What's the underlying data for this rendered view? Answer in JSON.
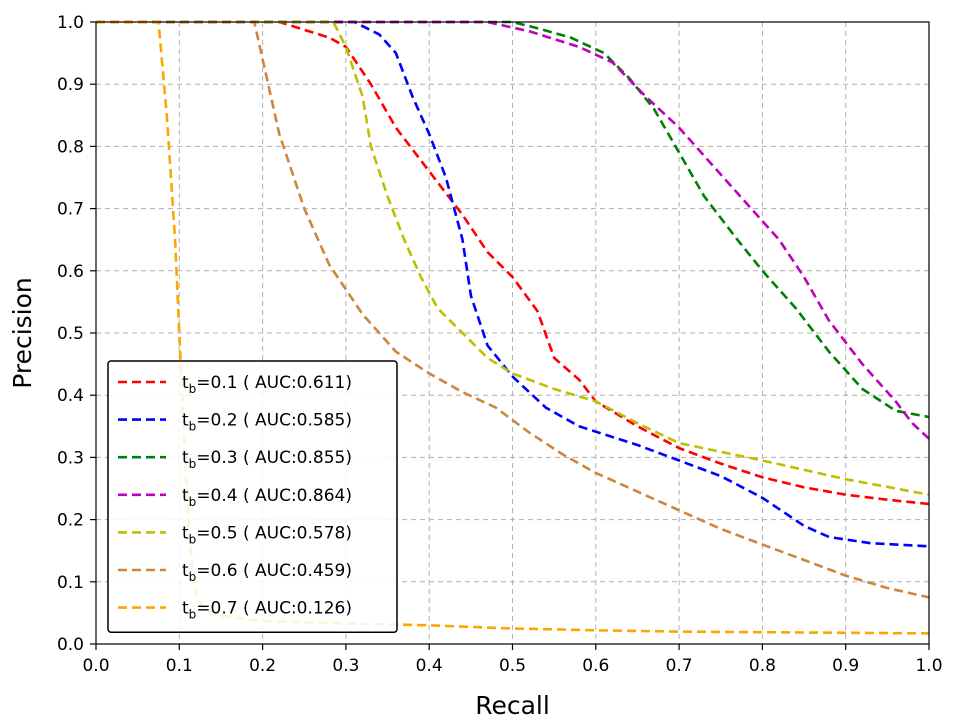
{
  "chart_data": {
    "type": "line",
    "title": "",
    "xlabel": "Recall",
    "ylabel": "Precision",
    "xlim": [
      0.0,
      1.0
    ],
    "ylim": [
      0.0,
      1.0
    ],
    "x_ticks": [
      "0.0",
      "0.1",
      "0.2",
      "0.3",
      "0.4",
      "0.5",
      "0.6",
      "0.7",
      "0.8",
      "0.9",
      "1.0"
    ],
    "y_ticks": [
      "0.0",
      "0.1",
      "0.2",
      "0.3",
      "0.4",
      "0.5",
      "0.6",
      "0.7",
      "0.8",
      "0.9",
      "1.0"
    ],
    "grid": true,
    "legend_position": "lower-left",
    "line_style": "dashed",
    "series": [
      {
        "name": "t_b=0.1 ( AUC:0.611)",
        "sym": "t",
        "sub": "b",
        "label_rest": "=0.1 ( AUC:0.611)",
        "color": "#ff0000",
        "points": [
          [
            0.0,
            1.0
          ],
          [
            0.22,
            1.0
          ],
          [
            0.28,
            0.975
          ],
          [
            0.3,
            0.96
          ],
          [
            0.33,
            0.9
          ],
          [
            0.36,
            0.83
          ],
          [
            0.4,
            0.76
          ],
          [
            0.44,
            0.69
          ],
          [
            0.47,
            0.63
          ],
          [
            0.5,
            0.59
          ],
          [
            0.53,
            0.535
          ],
          [
            0.55,
            0.46
          ],
          [
            0.58,
            0.425
          ],
          [
            0.6,
            0.39
          ],
          [
            0.65,
            0.35
          ],
          [
            0.7,
            0.315
          ],
          [
            0.75,
            0.29
          ],
          [
            0.8,
            0.268
          ],
          [
            0.85,
            0.252
          ],
          [
            0.9,
            0.24
          ],
          [
            0.95,
            0.232
          ],
          [
            1.0,
            0.225
          ]
        ]
      },
      {
        "name": "t_b=0.2 ( AUC:0.585)",
        "sym": "t",
        "sub": "b",
        "label_rest": "=0.2 ( AUC:0.585)",
        "color": "#0000ff",
        "points": [
          [
            0.0,
            1.0
          ],
          [
            0.31,
            1.0
          ],
          [
            0.34,
            0.98
          ],
          [
            0.36,
            0.95
          ],
          [
            0.38,
            0.88
          ],
          [
            0.4,
            0.82
          ],
          [
            0.42,
            0.75
          ],
          [
            0.44,
            0.65
          ],
          [
            0.45,
            0.56
          ],
          [
            0.47,
            0.48
          ],
          [
            0.5,
            0.43
          ],
          [
            0.54,
            0.38
          ],
          [
            0.58,
            0.35
          ],
          [
            0.65,
            0.32
          ],
          [
            0.7,
            0.295
          ],
          [
            0.75,
            0.27
          ],
          [
            0.8,
            0.235
          ],
          [
            0.85,
            0.19
          ],
          [
            0.88,
            0.172
          ],
          [
            0.93,
            0.162
          ],
          [
            1.0,
            0.157
          ]
        ]
      },
      {
        "name": "t_b=0.3 ( AUC:0.855)",
        "sym": "t",
        "sub": "b",
        "label_rest": "=0.3 ( AUC:0.855)",
        "color": "#008000",
        "points": [
          [
            0.0,
            1.0
          ],
          [
            0.5,
            1.0
          ],
          [
            0.53,
            0.99
          ],
          [
            0.57,
            0.975
          ],
          [
            0.61,
            0.95
          ],
          [
            0.64,
            0.91
          ],
          [
            0.67,
            0.86
          ],
          [
            0.7,
            0.79
          ],
          [
            0.73,
            0.72
          ],
          [
            0.77,
            0.65
          ],
          [
            0.8,
            0.6
          ],
          [
            0.84,
            0.54
          ],
          [
            0.88,
            0.47
          ],
          [
            0.92,
            0.41
          ],
          [
            0.96,
            0.375
          ],
          [
            1.0,
            0.365
          ]
        ]
      },
      {
        "name": "t_b=0.4 ( AUC:0.864)",
        "sym": "t",
        "sub": "b",
        "label_rest": "=0.4 ( AUC:0.864)",
        "color": "#bf00bf",
        "points": [
          [
            0.0,
            1.0
          ],
          [
            0.47,
            1.0
          ],
          [
            0.52,
            0.985
          ],
          [
            0.58,
            0.96
          ],
          [
            0.62,
            0.935
          ],
          [
            0.66,
            0.88
          ],
          [
            0.7,
            0.83
          ],
          [
            0.74,
            0.77
          ],
          [
            0.78,
            0.71
          ],
          [
            0.82,
            0.65
          ],
          [
            0.85,
            0.59
          ],
          [
            0.88,
            0.52
          ],
          [
            0.92,
            0.45
          ],
          [
            0.96,
            0.39
          ],
          [
            0.98,
            0.355
          ],
          [
            1.0,
            0.33
          ]
        ]
      },
      {
        "name": "t_b=0.5 ( AUC:0.578)",
        "sym": "t",
        "sub": "b",
        "label_rest": "=0.5 ( AUC:0.578)",
        "color": "#bfbf00",
        "points": [
          [
            0.0,
            1.0
          ],
          [
            0.285,
            1.0
          ],
          [
            0.3,
            0.96
          ],
          [
            0.32,
            0.88
          ],
          [
            0.33,
            0.8
          ],
          [
            0.35,
            0.72
          ],
          [
            0.37,
            0.65
          ],
          [
            0.39,
            0.59
          ],
          [
            0.41,
            0.54
          ],
          [
            0.44,
            0.5
          ],
          [
            0.47,
            0.46
          ],
          [
            0.5,
            0.435
          ],
          [
            0.55,
            0.41
          ],
          [
            0.6,
            0.39
          ],
          [
            0.65,
            0.355
          ],
          [
            0.7,
            0.323
          ],
          [
            0.8,
            0.295
          ],
          [
            0.9,
            0.265
          ],
          [
            1.0,
            0.24
          ]
        ]
      },
      {
        "name": "t_b=0.6 ( AUC:0.459)",
        "sym": "t",
        "sub": "b",
        "label_rest": "=0.6 ( AUC:0.459)",
        "color": "#cd853f",
        "points": [
          [
            0.0,
            1.0
          ],
          [
            0.19,
            1.0
          ],
          [
            0.2,
            0.94
          ],
          [
            0.22,
            0.82
          ],
          [
            0.25,
            0.7
          ],
          [
            0.28,
            0.61
          ],
          [
            0.32,
            0.53
          ],
          [
            0.36,
            0.47
          ],
          [
            0.4,
            0.435
          ],
          [
            0.44,
            0.405
          ],
          [
            0.48,
            0.38
          ],
          [
            0.52,
            0.34
          ],
          [
            0.56,
            0.305
          ],
          [
            0.6,
            0.275
          ],
          [
            0.65,
            0.245
          ],
          [
            0.7,
            0.215
          ],
          [
            0.75,
            0.185
          ],
          [
            0.8,
            0.16
          ],
          [
            0.85,
            0.135
          ],
          [
            0.9,
            0.11
          ],
          [
            0.95,
            0.09
          ],
          [
            1.0,
            0.075
          ]
        ]
      },
      {
        "name": "t_b=0.7 ( AUC:0.126)",
        "sym": "t",
        "sub": "b",
        "label_rest": "=0.7 ( AUC:0.126)",
        "color": "#ffa500",
        "points": [
          [
            0.0,
            1.0
          ],
          [
            0.075,
            1.0
          ],
          [
            0.085,
            0.85
          ],
          [
            0.095,
            0.65
          ],
          [
            0.1,
            0.5
          ],
          [
            0.105,
            0.35
          ],
          [
            0.11,
            0.22
          ],
          [
            0.115,
            0.13
          ],
          [
            0.12,
            0.08
          ],
          [
            0.13,
            0.055
          ],
          [
            0.15,
            0.045
          ],
          [
            0.2,
            0.037
          ],
          [
            0.3,
            0.033
          ],
          [
            0.4,
            0.03
          ],
          [
            0.5,
            0.025
          ],
          [
            0.6,
            0.022
          ],
          [
            0.7,
            0.02
          ],
          [
            0.8,
            0.019
          ],
          [
            0.9,
            0.018
          ],
          [
            1.0,
            0.017
          ]
        ]
      }
    ]
  }
}
